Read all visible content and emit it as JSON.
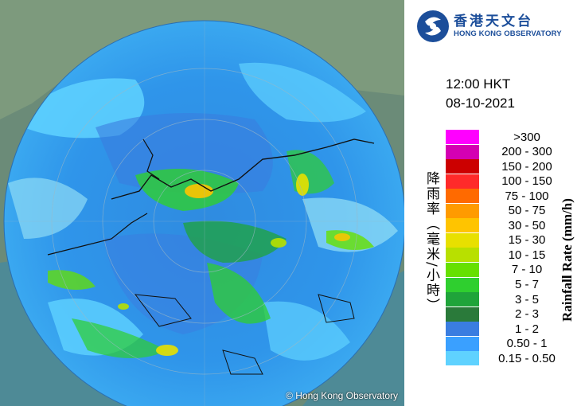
{
  "header": {
    "logo_chinese": "香港天文台",
    "logo_english": "HONG KONG OBSERVATORY",
    "logo_icon": "hko-logo-icon"
  },
  "timestamp": {
    "time": "12:00 HKT",
    "date": "08-10-2021"
  },
  "legend": {
    "title_chinese": "降雨率（毫米/小時）",
    "title_english": "Rainfall Rate (mm/h)",
    "items": [
      {
        "label": ">300",
        "color": "#ff00ff"
      },
      {
        "label": "200 - 300",
        "color": "#d400b2"
      },
      {
        "label": "150 - 200",
        "color": "#cc0000"
      },
      {
        "label": "100 - 150",
        "color": "#ff2a2a"
      },
      {
        "label": "75 - 100",
        "color": "#ff6a00"
      },
      {
        "label": "50 - 75",
        "color": "#ff9b00"
      },
      {
        "label": "30 - 50",
        "color": "#ffc400"
      },
      {
        "label": "15 - 30",
        "color": "#e8e000"
      },
      {
        "label": "10 - 15",
        "color": "#b8e000"
      },
      {
        "label": "7 - 10",
        "color": "#66e000"
      },
      {
        "label": "5 - 7",
        "color": "#2fcf2f"
      },
      {
        "label": "3 - 5",
        "color": "#1fa43a"
      },
      {
        "label": "2 - 3",
        "color": "#2a7a3a"
      },
      {
        "label": "1 - 2",
        "color": "#3a7de0"
      },
      {
        "label": "0.50 - 1",
        "color": "#3aa0ff"
      },
      {
        "label": "0.15 - 0.50",
        "color": "#5fd2ff"
      }
    ]
  },
  "map": {
    "copyright": "© Hong Kong Observatory"
  }
}
